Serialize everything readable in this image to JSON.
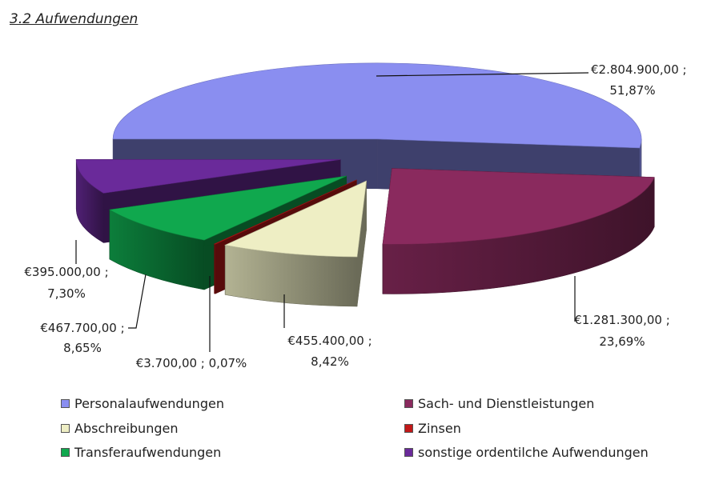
{
  "heading": "3.2  Aufwendungen",
  "chart_data": {
    "type": "pie",
    "title": "",
    "slices": [
      {
        "name": "Personalaufwendungen",
        "value": 2804900,
        "percent": 51.87,
        "label_value": "€2.804.900,00 ;",
        "label_pct": "51,87%",
        "color": "#8a8ef0"
      },
      {
        "name": "Sach- und Dienstleistungen",
        "value": 1281300,
        "percent": 23.69,
        "label_value": "€1.281.300,00 ;",
        "label_pct": "23,69%",
        "color": "#8a2a5e"
      },
      {
        "name": "Abschreibungen",
        "value": 455400,
        "percent": 8.42,
        "label_value": "€455.400,00 ;",
        "label_pct": "8,42%",
        "color": "#eeeec4"
      },
      {
        "name": "Zinsen",
        "value": 3700,
        "percent": 0.07,
        "label_value": "€3.700,00 ; 0,07%",
        "label_pct": "",
        "color": "#c21818"
      },
      {
        "name": "Transferaufwendungen",
        "value": 467700,
        "percent": 8.65,
        "label_value": "€467.700,00 ;",
        "label_pct": "8,65%",
        "color": "#10a84e"
      },
      {
        "name": "sonstige ordentilche Aufwendungen",
        "value": 395000,
        "percent": 7.3,
        "label_value": "€395.000,00 ;",
        "label_pct": "7,30%",
        "color": "#6a2a9a"
      }
    ],
    "legend_position": "bottom"
  }
}
